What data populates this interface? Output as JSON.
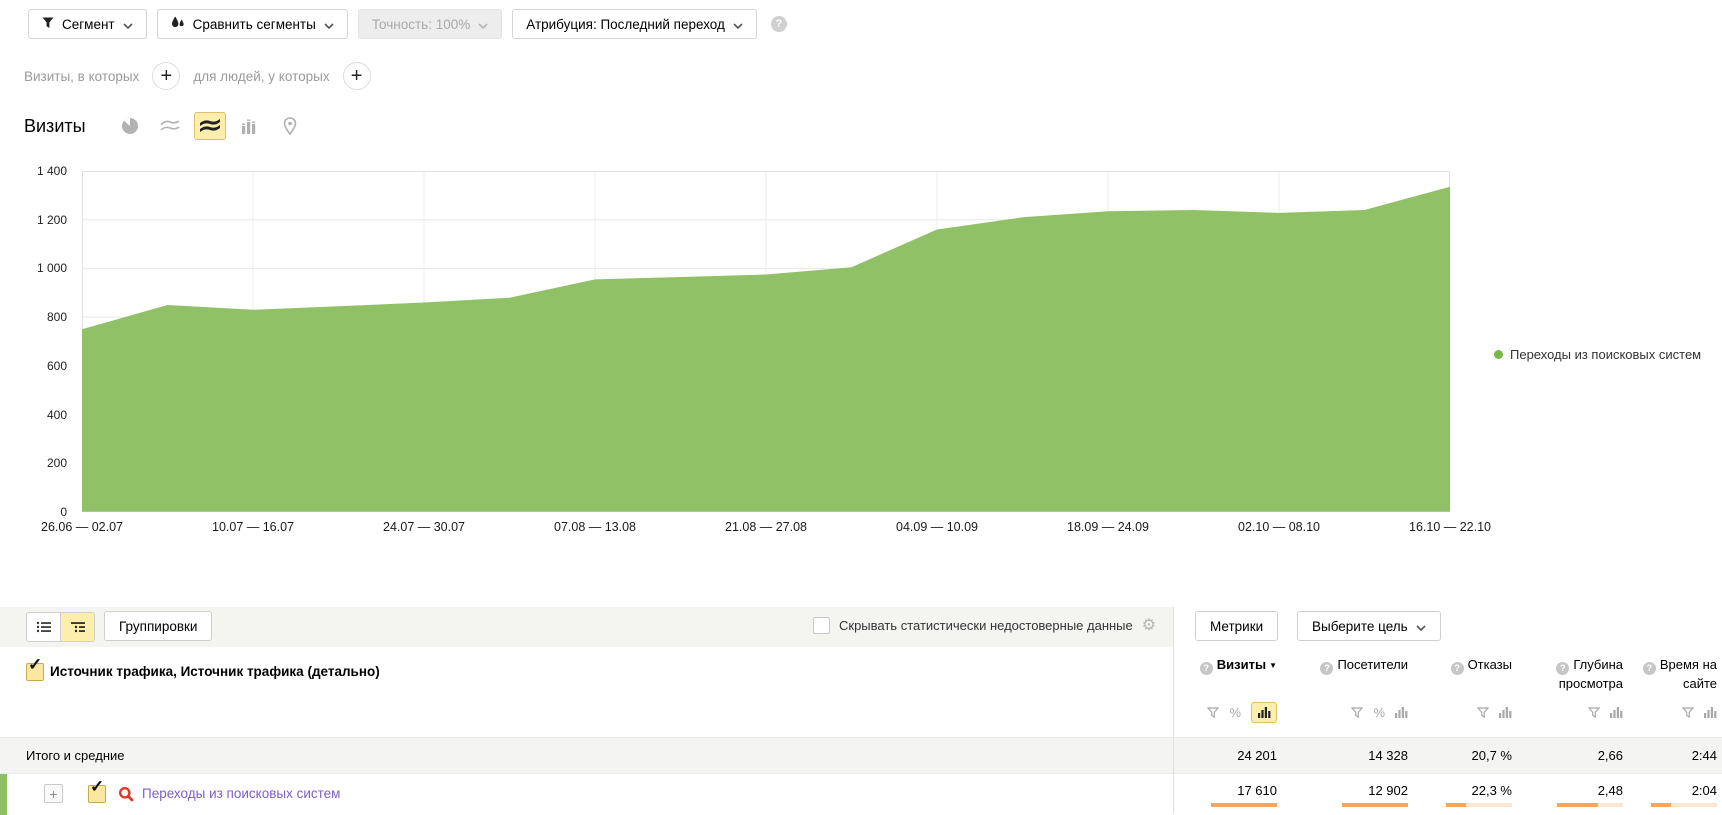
{
  "icons": {
    "help": "?",
    "check": "✓",
    "plus": "+",
    "gear": "⚙",
    "sort_desc": "▼",
    "percent": "%",
    "expand": "+"
  },
  "toolbar": {
    "segment_label": "Сегмент",
    "compare_label": "Сравнить сегменты",
    "precision_label": "Точность: 100%",
    "attribution_label": "Атрибуция: Последний переход"
  },
  "filter_builder": {
    "visits_label": "Визиты, в которых",
    "people_label": "для людей, у которых"
  },
  "chart_header": {
    "title": "Визиты"
  },
  "chart_data": {
    "type": "area",
    "title": "Визиты",
    "grid": true,
    "legend_position": "right",
    "ylim": [
      0,
      1400
    ],
    "ytick_step": 200,
    "y_tick_labels": [
      "1 400",
      "1 200",
      "1 000",
      "800",
      "600",
      "400",
      "200",
      "0"
    ],
    "x_axis_labels": [
      "26.06 — 02.07",
      "10.07 — 16.07",
      "24.07 — 30.07",
      "07.08 — 13.08",
      "21.08 — 27.08",
      "04.09 — 10.09",
      "18.09 — 24.09",
      "02.10 — 08.10",
      "16.10 — 22.10"
    ],
    "series": [
      {
        "name": "Переходы из поисковых систем",
        "color": "#90c167",
        "values": [
          750,
          850,
          830,
          845,
          860,
          880,
          955,
          965,
          975,
          1005,
          1160,
          1210,
          1235,
          1240,
          1228,
          1240,
          1335
        ]
      }
    ]
  },
  "table": {
    "groupings_label": "Группировки",
    "hide_unreliable_label": "Скрывать статистически недостоверные данные",
    "metrics_label": "Метрики",
    "goal_label": "Выберите цель",
    "dimension_label": "Источник трафика, Источник трафика (детально)",
    "totals_label": "Итого и средние",
    "columns": [
      {
        "label": "Визиты",
        "sorted": "desc",
        "filters": [
          "filter",
          "percent",
          "chart"
        ],
        "active_filter": "chart"
      },
      {
        "label": "Посетители",
        "sorted": null,
        "filters": [
          "filter",
          "percent",
          "chart"
        ],
        "active_filter": null
      },
      {
        "label": "Отказы",
        "sorted": null,
        "filters": [
          "filter",
          "chart"
        ],
        "active_filter": null
      },
      {
        "label": "Глубина просмотра",
        "sorted": null,
        "filters": [
          "filter",
          "chart"
        ],
        "active_filter": null
      },
      {
        "label": "Время на сайте",
        "sorted": null,
        "filters": [
          "filter",
          "chart"
        ],
        "active_filter": null
      }
    ],
    "totals": [
      "24 201",
      "14 328",
      "20,7 %",
      "2,66",
      "2:44"
    ],
    "rows": [
      {
        "label": "Переходы из поисковых систем",
        "checked": true,
        "icon": "search-traffic-icon",
        "values": [
          "17 610",
          "12 902",
          "22,3 %",
          "2,48",
          "2:04"
        ],
        "bar_fills": [
          1,
          1,
          0.3,
          0.62,
          0.3
        ]
      }
    ]
  }
}
